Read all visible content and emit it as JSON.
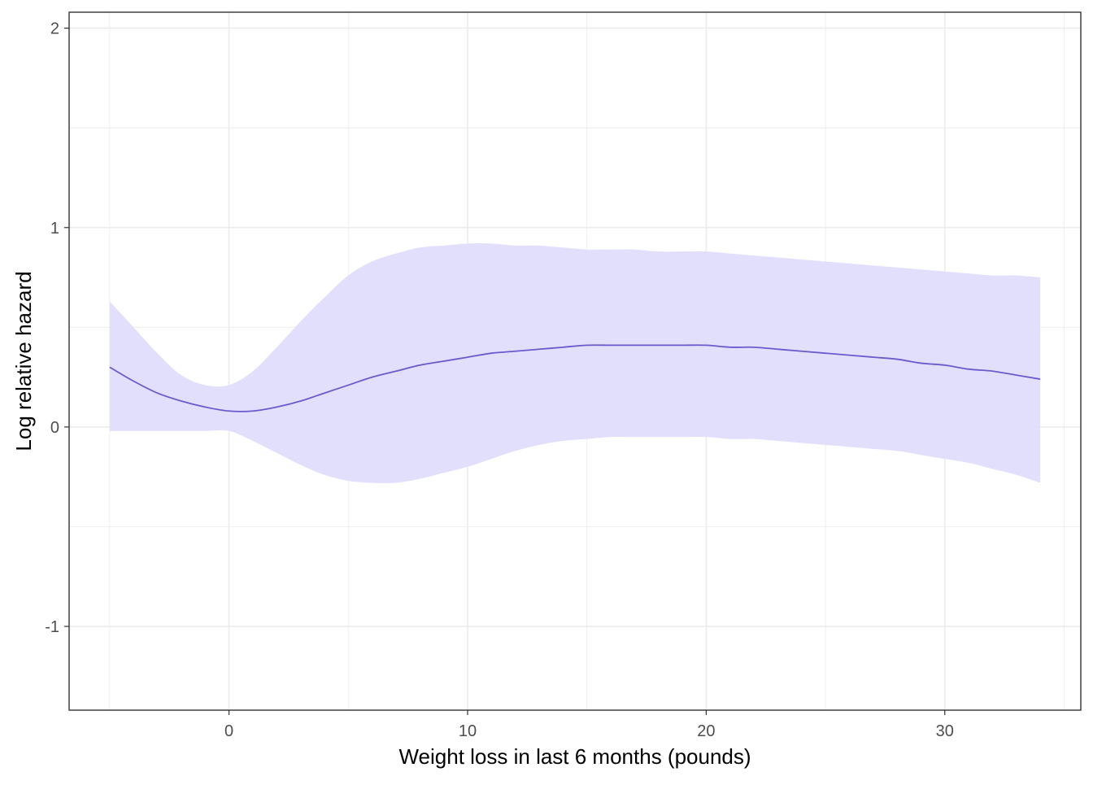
{
  "chart_data": {
    "type": "line",
    "title": "",
    "xlabel": "Weight loss in last 6 months (pounds)",
    "ylabel": "Log relative hazard",
    "xlim": [
      -6.7,
      35.7
    ],
    "ylim": [
      -1.42,
      2.08
    ],
    "x_ticks": [
      0,
      10,
      20,
      30
    ],
    "x_tick_labels": [
      "0",
      "10",
      "20",
      "30"
    ],
    "y_ticks": [
      -1,
      0,
      1,
      2
    ],
    "y_tick_labels": [
      "-1",
      "0",
      "1",
      "2"
    ],
    "grid": true,
    "legend": "none",
    "colors": {
      "line": "#6a5acd",
      "band": "#e1dffc",
      "grid": "#ebebeb",
      "panel_border": "#333333"
    },
    "series": [
      {
        "x": [
          -5,
          -4,
          -3,
          -2,
          -1,
          0,
          1,
          2,
          3,
          4,
          5,
          6,
          7,
          8,
          9,
          10,
          11,
          12,
          13,
          14,
          15,
          16,
          17,
          18,
          19,
          20,
          21,
          22,
          23,
          24,
          25,
          26,
          27,
          28,
          29,
          30,
          31,
          32,
          33,
          34
        ],
        "y": [
          0.3,
          0.23,
          0.17,
          0.13,
          0.1,
          0.08,
          0.08,
          0.1,
          0.13,
          0.17,
          0.21,
          0.25,
          0.28,
          0.31,
          0.33,
          0.35,
          0.37,
          0.38,
          0.39,
          0.4,
          0.41,
          0.41,
          0.41,
          0.41,
          0.41,
          0.41,
          0.4,
          0.4,
          0.39,
          0.38,
          0.37,
          0.36,
          0.35,
          0.34,
          0.32,
          0.31,
          0.29,
          0.28,
          0.26,
          0.24
        ],
        "lower": [
          -0.02,
          -0.02,
          -0.02,
          -0.02,
          -0.02,
          -0.02,
          -0.07,
          -0.13,
          -0.19,
          -0.24,
          -0.27,
          -0.28,
          -0.28,
          -0.26,
          -0.23,
          -0.2,
          -0.16,
          -0.12,
          -0.09,
          -0.07,
          -0.06,
          -0.05,
          -0.05,
          -0.05,
          -0.05,
          -0.05,
          -0.06,
          -0.06,
          -0.07,
          -0.08,
          -0.09,
          -0.1,
          -0.11,
          -0.12,
          -0.14,
          -0.16,
          -0.18,
          -0.21,
          -0.24,
          -0.28
        ],
        "upper": [
          0.63,
          0.5,
          0.37,
          0.26,
          0.21,
          0.21,
          0.28,
          0.4,
          0.53,
          0.65,
          0.76,
          0.83,
          0.87,
          0.9,
          0.91,
          0.92,
          0.92,
          0.91,
          0.91,
          0.9,
          0.89,
          0.89,
          0.89,
          0.88,
          0.88,
          0.88,
          0.87,
          0.86,
          0.85,
          0.84,
          0.83,
          0.82,
          0.81,
          0.8,
          0.79,
          0.78,
          0.77,
          0.76,
          0.76,
          0.75
        ]
      }
    ]
  }
}
